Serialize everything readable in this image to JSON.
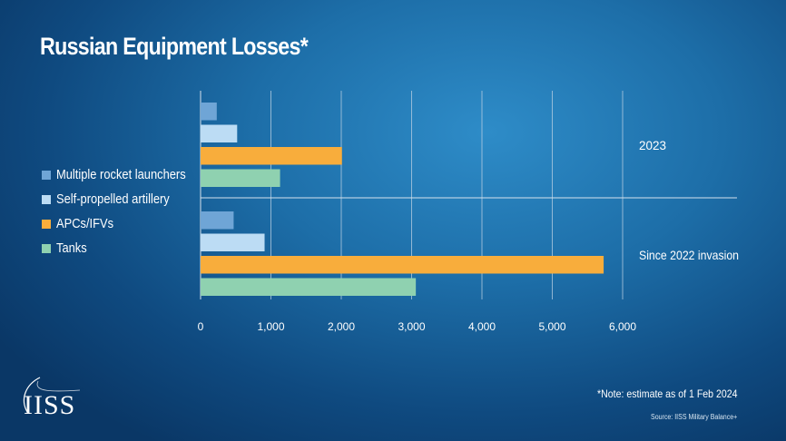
{
  "header": {
    "title": "Russian Equipment Losses*"
  },
  "footer": {
    "note": "*Note: estimate as of 1 Feb 2024",
    "source": "Source: IISS Military Balance+",
    "logo_text": "IISS"
  },
  "chart_data": {
    "type": "bar",
    "orientation": "horizontal",
    "title": "Russian Equipment Losses*",
    "xlabel": "",
    "ylabel": "",
    "xlim": [
      0,
      6000
    ],
    "xticks": [
      0,
      1000,
      2000,
      3000,
      4000,
      5000,
      6000
    ],
    "xtick_labels": [
      "0",
      "1,000",
      "2,000",
      "3,000",
      "4,000",
      "5,000",
      "6,000"
    ],
    "grid": "vertical",
    "legend_placement": "left",
    "groups": [
      "2023",
      "Since 2022 invasion"
    ],
    "series": [
      {
        "name": "Multiple rocket launchers",
        "color": "#6fa5d6",
        "values": [
          230,
          470
        ]
      },
      {
        "name": "Self-propelled artillery",
        "color": "#bcdcf4",
        "values": [
          520,
          910
        ]
      },
      {
        "name": "APCs/IFVs",
        "color": "#f8ad3c",
        "values": [
          2010,
          5730
        ]
      },
      {
        "name": "Tanks",
        "color": "#8fd1b0",
        "values": [
          1130,
          3060
        ]
      }
    ]
  }
}
